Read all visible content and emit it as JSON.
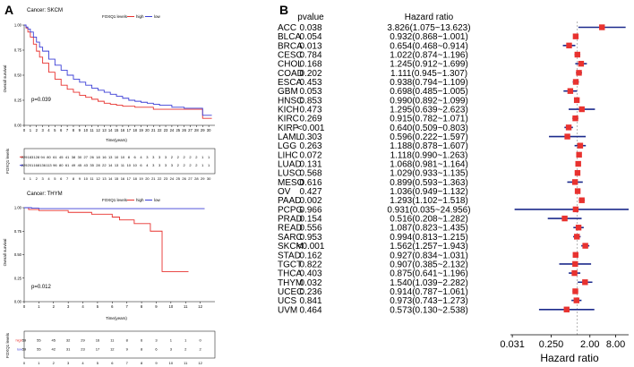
{
  "panel_a_label": "A",
  "panel_b_label": "B",
  "chart_data": [
    {
      "type": "line",
      "panel": "A-top",
      "title": "Cancer: SKCM",
      "xlabel": "Time(years)",
      "ylabel": "Overall survival",
      "xlim": [
        0,
        31
      ],
      "ylim": [
        0,
        1
      ],
      "xticks": [
        0,
        1,
        2,
        3,
        4,
        5,
        6,
        7,
        8,
        9,
        10,
        11,
        12,
        13,
        14,
        15,
        16,
        17,
        18,
        19,
        20,
        21,
        22,
        23,
        24,
        25,
        26,
        27,
        28,
        29,
        30
      ],
      "yticks": [
        "0.00",
        "0.25",
        "0.50",
        "0.75",
        "1.00"
      ],
      "pvalue": "p=0.039",
      "risk_table_title": "FOXQ1 levels",
      "risk_rows": [
        {
          "values": [
            "229",
            "183",
            "128",
            "94",
            "80",
            "61",
            "45",
            "41",
            "38",
            "30",
            "27",
            "26",
            "18",
            "16",
            "13",
            "10",
            "10",
            "8",
            "6",
            "4",
            "3",
            "3",
            "3",
            "3",
            "2",
            "2",
            "2",
            "2",
            "2",
            "1",
            "1"
          ]
        },
        {
          "values": [
            "229",
            "201",
            "168",
            "136",
            "113",
            "96",
            "80",
            "61",
            "49",
            "45",
            "43",
            "35",
            "28",
            "22",
            "14",
            "13",
            "11",
            "10",
            "10",
            "6",
            "4",
            "3",
            "3",
            "3",
            "3",
            "2",
            "2",
            "2",
            "2",
            "1",
            "1"
          ]
        }
      ],
      "series": [
        {
          "name": "high",
          "color": "#e8322f",
          "x": [
            0,
            0.3,
            0.6,
            1,
            1.5,
            2,
            2.5,
            3,
            4,
            5,
            6,
            7,
            8,
            9,
            10,
            11,
            12,
            13,
            14,
            15,
            16,
            17,
            18,
            19,
            20,
            21,
            22,
            23,
            24,
            25,
            26,
            27,
            28,
            29,
            30,
            30.5
          ],
          "y": [
            1.0,
            0.97,
            0.93,
            0.88,
            0.81,
            0.74,
            0.68,
            0.62,
            0.53,
            0.46,
            0.4,
            0.36,
            0.33,
            0.3,
            0.28,
            0.26,
            0.24,
            0.22,
            0.21,
            0.2,
            0.19,
            0.19,
            0.18,
            0.18,
            0.18,
            0.16,
            0.16,
            0.16,
            0.16,
            0.16,
            0.16,
            0.16,
            0.16,
            0.07,
            0.07,
            0.07
          ]
        },
        {
          "name": "low",
          "color": "#3b3fd6",
          "x": [
            0,
            0.3,
            0.6,
            1,
            1.5,
            2,
            2.5,
            3,
            4,
            5,
            6,
            7,
            8,
            9,
            10,
            11,
            12,
            13,
            14,
            15,
            16,
            17,
            18,
            19,
            20,
            21,
            22,
            23,
            24,
            25,
            26,
            27,
            28,
            29,
            30,
            30.5
          ],
          "y": [
            1.0,
            0.98,
            0.96,
            0.93,
            0.88,
            0.83,
            0.78,
            0.74,
            0.66,
            0.6,
            0.55,
            0.5,
            0.46,
            0.43,
            0.4,
            0.37,
            0.35,
            0.33,
            0.31,
            0.29,
            0.27,
            0.25,
            0.24,
            0.23,
            0.22,
            0.21,
            0.2,
            0.2,
            0.18,
            0.18,
            0.17,
            0.17,
            0.17,
            0.1,
            0.1,
            0.1
          ]
        }
      ]
    },
    {
      "type": "line",
      "panel": "A-bottom",
      "title": "Cancer: THYM",
      "xlabel": "Time(years)",
      "ylabel": "Overall survival",
      "xlim": [
        0,
        13
      ],
      "ylim": [
        0,
        1
      ],
      "xticks": [
        0,
        1,
        2,
        3,
        4,
        5,
        6,
        7,
        8,
        9,
        10,
        11,
        12
      ],
      "yticks": [
        "0.00",
        "0.25",
        "0.50",
        "0.75",
        "1.00"
      ],
      "pvalue": "p=0.012",
      "risk_table_title": "FOXQ1 levels",
      "risk_rows": [
        {
          "name": "high",
          "values": [
            "59",
            "55",
            "45",
            "32",
            "29",
            "16",
            "11",
            "8",
            "6",
            "3",
            "1",
            "1",
            "0"
          ]
        },
        {
          "name": "low",
          "values": [
            "59",
            "55",
            "42",
            "31",
            "23",
            "17",
            "12",
            "9",
            "8",
            "6",
            "3",
            "2",
            "2"
          ]
        }
      ],
      "series": [
        {
          "name": "high",
          "color": "#e8322f",
          "x": [
            0,
            0.3,
            0.6,
            1,
            2,
            3,
            4,
            4.6,
            5,
            6,
            6.5,
            7,
            7.5,
            8,
            8.6,
            9,
            9.4,
            10,
            11,
            11.2
          ],
          "y": [
            1.0,
            0.98,
            0.98,
            0.97,
            0.97,
            0.95,
            0.95,
            0.93,
            0.93,
            0.9,
            0.87,
            0.87,
            0.83,
            0.83,
            0.75,
            0.75,
            0.32,
            0.32,
            0.32,
            0.32
          ]
        },
        {
          "name": "low",
          "color": "#3b3fd6",
          "x": [
            0,
            0.5,
            1,
            2,
            3,
            4,
            5,
            6,
            7,
            8,
            9,
            10,
            11,
            12,
            12.3
          ],
          "y": [
            1.0,
            0.995,
            0.99,
            0.99,
            0.99,
            0.99,
            0.99,
            0.99,
            0.99,
            0.99,
            0.99,
            0.99,
            0.99,
            0.99,
            0.99
          ]
        }
      ]
    },
    {
      "type": "forest",
      "panel": "B",
      "columns": {
        "pvalue": "pvalue",
        "hr": "Hazard ratio"
      },
      "xlabel": "Hazard ratio",
      "xscale": "log2",
      "xticks": [
        "0.031",
        "0.250",
        "2.00",
        "8.00"
      ],
      "xtick_values": [
        0.031,
        0.25,
        2.0,
        8.0
      ],
      "xlim": [
        0.028,
        16
      ],
      "rows": [
        {
          "cancer": "ACC",
          "pvalue": "0.038",
          "hr_text": "3.826(1.075~13.623)",
          "hr": 3.826,
          "lo": 1.075,
          "hi": 13.623
        },
        {
          "cancer": "BLCA",
          "pvalue": "0.054",
          "hr_text": "0.932(0.868~1.001)",
          "hr": 0.932,
          "lo": 0.868,
          "hi": 1.001
        },
        {
          "cancer": "BRCA",
          "pvalue": "0.013",
          "hr_text": "0.654(0.468~0.914)",
          "hr": 0.654,
          "lo": 0.468,
          "hi": 0.914
        },
        {
          "cancer": "CESC",
          "pvalue": "0.784",
          "hr_text": "1.022(0.874~1.196)",
          "hr": 1.022,
          "lo": 0.874,
          "hi": 1.196
        },
        {
          "cancer": "CHOL",
          "pvalue": "0.168",
          "hr_text": "1.245(0.912~1.699)",
          "hr": 1.245,
          "lo": 0.912,
          "hi": 1.699
        },
        {
          "cancer": "COAD",
          "pvalue": "0.202",
          "hr_text": "1.111(0.945~1.307)",
          "hr": 1.111,
          "lo": 0.945,
          "hi": 1.307
        },
        {
          "cancer": "ESCA",
          "pvalue": "0.453",
          "hr_text": "0.938(0.794~1.109)",
          "hr": 0.938,
          "lo": 0.794,
          "hi": 1.109
        },
        {
          "cancer": "GBM",
          "pvalue": "0.053",
          "hr_text": "0.698(0.485~1.005)",
          "hr": 0.698,
          "lo": 0.485,
          "hi": 1.005
        },
        {
          "cancer": "HNSC",
          "pvalue": "0.853",
          "hr_text": "0.990(0.892~1.099)",
          "hr": 0.99,
          "lo": 0.892,
          "hi": 1.099
        },
        {
          "cancer": "KICH",
          "pvalue": "0.473",
          "hr_text": "1.295(0.639~2.623)",
          "hr": 1.295,
          "lo": 0.639,
          "hi": 2.623
        },
        {
          "cancer": "KIRC",
          "pvalue": "0.269",
          "hr_text": "0.915(0.782~1.071)",
          "hr": 0.915,
          "lo": 0.782,
          "hi": 1.071
        },
        {
          "cancer": "KIRP",
          "pvalue": "<0.001",
          "hr_text": "0.640(0.509~0.803)",
          "hr": 0.64,
          "lo": 0.509,
          "hi": 0.803
        },
        {
          "cancer": "LAML",
          "pvalue": "0.303",
          "hr_text": "0.596(0.222~1.597)",
          "hr": 0.596,
          "lo": 0.222,
          "hi": 1.597
        },
        {
          "cancer": "LGG",
          "pvalue": "0.263",
          "hr_text": "1.188(0.878~1.607)",
          "hr": 1.188,
          "lo": 0.878,
          "hi": 1.607
        },
        {
          "cancer": "LIHC",
          "pvalue": "0.072",
          "hr_text": "1.118(0.990~1.263)",
          "hr": 1.118,
          "lo": 0.99,
          "hi": 1.263
        },
        {
          "cancer": "LUAD",
          "pvalue": "0.131",
          "hr_text": "1.068(0.981~1.164)",
          "hr": 1.068,
          "lo": 0.981,
          "hi": 1.164
        },
        {
          "cancer": "LUSC",
          "pvalue": "0.568",
          "hr_text": "1.029(0.933~1.135)",
          "hr": 1.029,
          "lo": 0.933,
          "hi": 1.135
        },
        {
          "cancer": "MESO",
          "pvalue": "0.616",
          "hr_text": "0.899(0.593~1.363)",
          "hr": 0.899,
          "lo": 0.593,
          "hi": 1.363
        },
        {
          "cancer": "OV",
          "pvalue": "0.427",
          "hr_text": "1.036(0.949~1.132)",
          "hr": 1.036,
          "lo": 0.949,
          "hi": 1.132
        },
        {
          "cancer": "PAAD",
          "pvalue": "0.002",
          "hr_text": "1.293(1.102~1.518)",
          "hr": 1.293,
          "lo": 1.102,
          "hi": 1.518
        },
        {
          "cancer": "PCPG",
          "pvalue": "0.966",
          "hr_text": "0.931(0.035~24.956)",
          "hr": 0.931,
          "lo": 0.035,
          "hi": 24.956
        },
        {
          "cancer": "PRAD",
          "pvalue": "0.154",
          "hr_text": "0.516(0.208~1.282)",
          "hr": 0.516,
          "lo": 0.208,
          "hi": 1.282
        },
        {
          "cancer": "READ",
          "pvalue": "0.556",
          "hr_text": "1.087(0.823~1.435)",
          "hr": 1.087,
          "lo": 0.823,
          "hi": 1.435
        },
        {
          "cancer": "SARC",
          "pvalue": "0.953",
          "hr_text": "0.994(0.813~1.215)",
          "hr": 0.994,
          "lo": 0.813,
          "hi": 1.215
        },
        {
          "cancer": "SKCM",
          "pvalue": "<0.001",
          "hr_text": "1.562(1.257~1.943)",
          "hr": 1.562,
          "lo": 1.257,
          "hi": 1.943
        },
        {
          "cancer": "STAD",
          "pvalue": "0.162",
          "hr_text": "0.927(0.834~1.031)",
          "hr": 0.927,
          "lo": 0.834,
          "hi": 1.031
        },
        {
          "cancer": "TGCT",
          "pvalue": "0.822",
          "hr_text": "0.907(0.385~2.132)",
          "hr": 0.907,
          "lo": 0.385,
          "hi": 2.132
        },
        {
          "cancer": "THCA",
          "pvalue": "0.403",
          "hr_text": "0.875(0.641~1.196)",
          "hr": 0.875,
          "lo": 0.641,
          "hi": 1.196
        },
        {
          "cancer": "THYM",
          "pvalue": "0.032",
          "hr_text": "1.540(1.039~2.282)",
          "hr": 1.54,
          "lo": 1.039,
          "hi": 2.282
        },
        {
          "cancer": "UCEC",
          "pvalue": "0.236",
          "hr_text": "0.914(0.787~1.061)",
          "hr": 0.914,
          "lo": 0.787,
          "hi": 1.061
        },
        {
          "cancer": "UCS",
          "pvalue": "0.841",
          "hr_text": "0.973(0.743~1.273)",
          "hr": 0.973,
          "lo": 0.743,
          "hi": 1.273
        },
        {
          "cancer": "UVM",
          "pvalue": "0.464",
          "hr_text": "0.573(0.130~2.538)",
          "hr": 0.573,
          "lo": 0.13,
          "hi": 2.538
        }
      ]
    }
  ],
  "legend": {
    "title": "FOXQ1 levels",
    "high": "high",
    "low": "low"
  },
  "colors": {
    "high": "#e8322f",
    "low": "#3b3fd6",
    "forest_marker": "#e8322f",
    "forest_ci": "#1c2a8c"
  }
}
